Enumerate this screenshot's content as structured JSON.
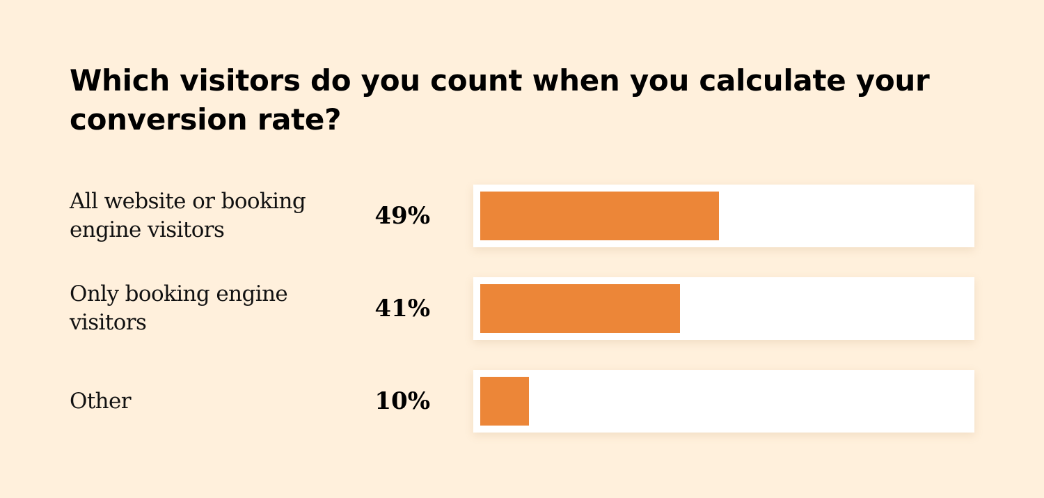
{
  "chart_data": {
    "type": "bar",
    "orientation": "horizontal",
    "title": "Which visitors do you count when you calculate your conversion rate?",
    "categories": [
      "All website or booking engine visitors",
      "Only booking engine visitors",
      "Other"
    ],
    "values": [
      49,
      41,
      10
    ],
    "value_labels": [
      "49%",
      "41%",
      "10%"
    ],
    "unit": "%",
    "xlim": [
      0,
      100
    ],
    "grid": false,
    "legend": "none",
    "colors": {
      "bar": "#EC8638",
      "track": "#FFFFFF",
      "background": "#FFF0DC",
      "text": "#000000"
    }
  }
}
